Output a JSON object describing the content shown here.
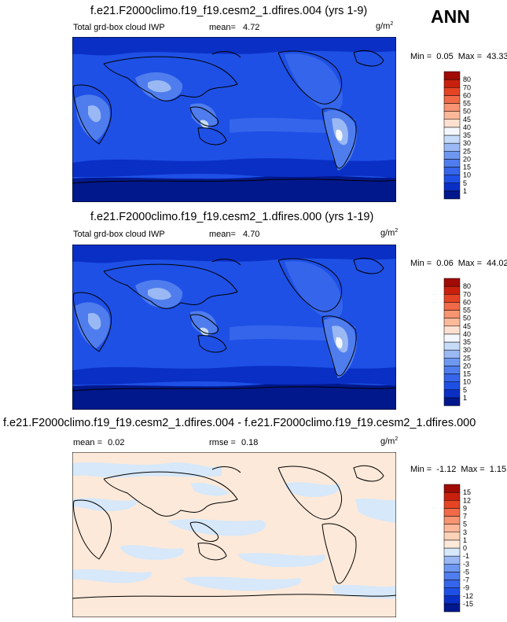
{
  "season": "ANN",
  "panels": [
    {
      "title": "f.e21.F2000climo.f19_f19.cesm2_1.dfires.004 (yrs 1-9)",
      "left_label": "Total grd-box cloud IWP",
      "mean_label": "mean=",
      "mean_value": "4.72",
      "unit": "g/m",
      "unit_exp": "2",
      "min_label": "Min =",
      "min_value": "0.05",
      "max_label": "Max =",
      "max_value": "43.33"
    },
    {
      "title": "f.e21.F2000climo.f19_f19.cesm2_1.dfires.000 (yrs 1-19)",
      "left_label": "Total grd-box cloud IWP",
      "mean_label": "mean=",
      "mean_value": "4.70",
      "unit": "g/m",
      "unit_exp": "2",
      "min_label": "Min =",
      "min_value": "0.06",
      "max_label": "Max =",
      "max_value": "44.02"
    },
    {
      "title": "f.e21.F2000climo.f19_f19.cesm2_1.dfires.004 - f.e21.F2000climo.f19_f19.cesm2_1.dfires.000",
      "left_label": "mean =",
      "left_value": "0.02",
      "mean_label": "rmse =",
      "mean_value": "0.18",
      "unit": "g/m",
      "unit_exp": "2",
      "min_label": "Min =",
      "min_value": "-1.12",
      "max_label": "Max =",
      "max_value": "1.15"
    }
  ],
  "chart_data": [
    {
      "type": "heatmap",
      "title": "f.e21.F2000climo.f19_f19.cesm2_1.dfires.004 (yrs 1-9)",
      "colorbar": {
        "levels": [
          "1",
          "5",
          "10",
          "15",
          "20",
          "25",
          "30",
          "35",
          "40",
          "45",
          "50",
          "55",
          "60",
          "70",
          "80"
        ],
        "colors": [
          "#00188c",
          "#0a2fc4",
          "#1e50e6",
          "#3565ea",
          "#4f7ded",
          "#6e98f0",
          "#9ab8f3",
          "#c6dbf8",
          "#f4f8fd",
          "#fde0cf",
          "#fbb99a",
          "#f79472",
          "#f06a48",
          "#e44424",
          "#c8200d",
          "#a00b05"
        ]
      }
    },
    {
      "type": "heatmap",
      "title": "f.e21.F2000climo.f19_f19.cesm2_1.dfires.000 (yrs 1-19)",
      "colorbar": {
        "levels": [
          "1",
          "5",
          "10",
          "15",
          "20",
          "25",
          "30",
          "35",
          "40",
          "45",
          "50",
          "55",
          "60",
          "70",
          "80"
        ],
        "colors": [
          "#00188c",
          "#0a2fc4",
          "#1e50e6",
          "#3565ea",
          "#4f7ded",
          "#6e98f0",
          "#9ab8f3",
          "#c6dbf8",
          "#f4f8fd",
          "#fde0cf",
          "#fbb99a",
          "#f79472",
          "#f06a48",
          "#e44424",
          "#c8200d",
          "#a00b05"
        ]
      }
    },
    {
      "type": "heatmap",
      "title": "f.e21.F2000climo.f19_f19.cesm2_1.dfires.004 - f.e21.F2000climo.f19_f19.cesm2_1.dfires.000",
      "colorbar": {
        "levels": [
          "-15",
          "-12",
          "-9",
          "-7",
          "-5",
          "-3",
          "-1",
          "0",
          "1",
          "3",
          "5",
          "7",
          "9",
          "12",
          "15"
        ],
        "colors": [
          "#00188c",
          "#0a2fc4",
          "#1e50e6",
          "#3565ea",
          "#4f7ded",
          "#6e98f0",
          "#9ab8f3",
          "#d6e8fa",
          "#fde9d9",
          "#fcd3b8",
          "#fbb99a",
          "#f79472",
          "#f06a48",
          "#e44424",
          "#c8200d",
          "#a00b05"
        ]
      }
    }
  ]
}
